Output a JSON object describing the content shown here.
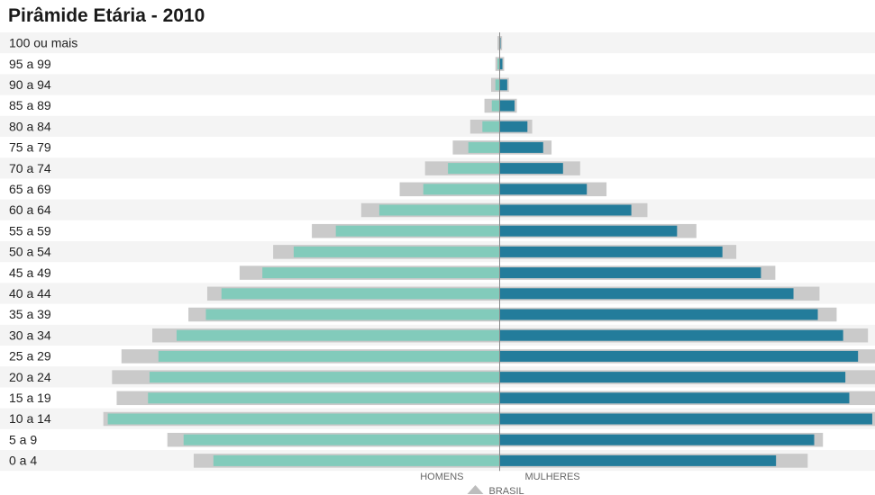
{
  "chart_data": {
    "type": "bar",
    "title": "Pirâmide Etária - 2010",
    "categories": [
      "100 ou mais",
      "95 a 99",
      "90 a 94",
      "85 a 89",
      "80 a 84",
      "75 a 79",
      "70 a 74",
      "65 a 69",
      "60 a 64",
      "55 a 59",
      "50 a 54",
      "45 a 49",
      "40 a 44",
      "35 a 39",
      "30 a 34",
      "25 a 29",
      "20 a 24",
      "15 a 19",
      "10 a 14",
      "5 a 9",
      "0 a 4"
    ],
    "series": [
      {
        "name": "HOMENS",
        "values": [
          0.3,
          1.3,
          2.5,
          4.6,
          10.1,
          18.3,
          30.2,
          44.6,
          70.3,
          95.7,
          120.3,
          138.6,
          162.5,
          171.6,
          188.7,
          199.3,
          204.5,
          205.4,
          228.9,
          184.6,
          167.2
        ]
      },
      {
        "name": "MULHERES",
        "values": [
          0.5,
          1.6,
          4.4,
          8.7,
          16.2,
          25.4,
          37.0,
          50.9,
          76.9,
          103.6,
          130.1,
          152.6,
          171.6,
          185.8,
          200.6,
          209.3,
          201.9,
          204.2,
          217.6,
          183.7,
          161.4
        ]
      },
      {
        "name": "BRASIL",
        "values": [
          1.3,
          2.5,
          5.0,
          8.9,
          17.2,
          27.4,
          43.6,
          58.4,
          80.9,
          109.7,
          132.3,
          151.9,
          170.8,
          181.8,
          202.9,
          220.9,
          226.4,
          223.7,
          231.5,
          194.1,
          178.7
        ]
      },
      {
        "name": "BRASIL",
        "values": [
          1.4,
          2.6,
          5.4,
          10.0,
          19.0,
          30.3,
          47.0,
          62.4,
          86.3,
          114.9,
          138.2,
          161.0,
          186.8,
          196.8,
          215.1,
          225.9,
          220.2,
          221.6,
          224.9,
          188.8,
          179.9
        ]
      }
    ],
    "colors": {
      "men": "#82cbbb",
      "women": "#237c9b",
      "reference": "#cacaca",
      "axis": "#8a8a8a",
      "stripe": "#f4f4f4"
    },
    "legend": {
      "left_label": "HOMENS",
      "right_label": "MULHERES",
      "marker_label": "BRASIL",
      "marker_icon": "triangle-up-icon"
    },
    "grid": false
  }
}
